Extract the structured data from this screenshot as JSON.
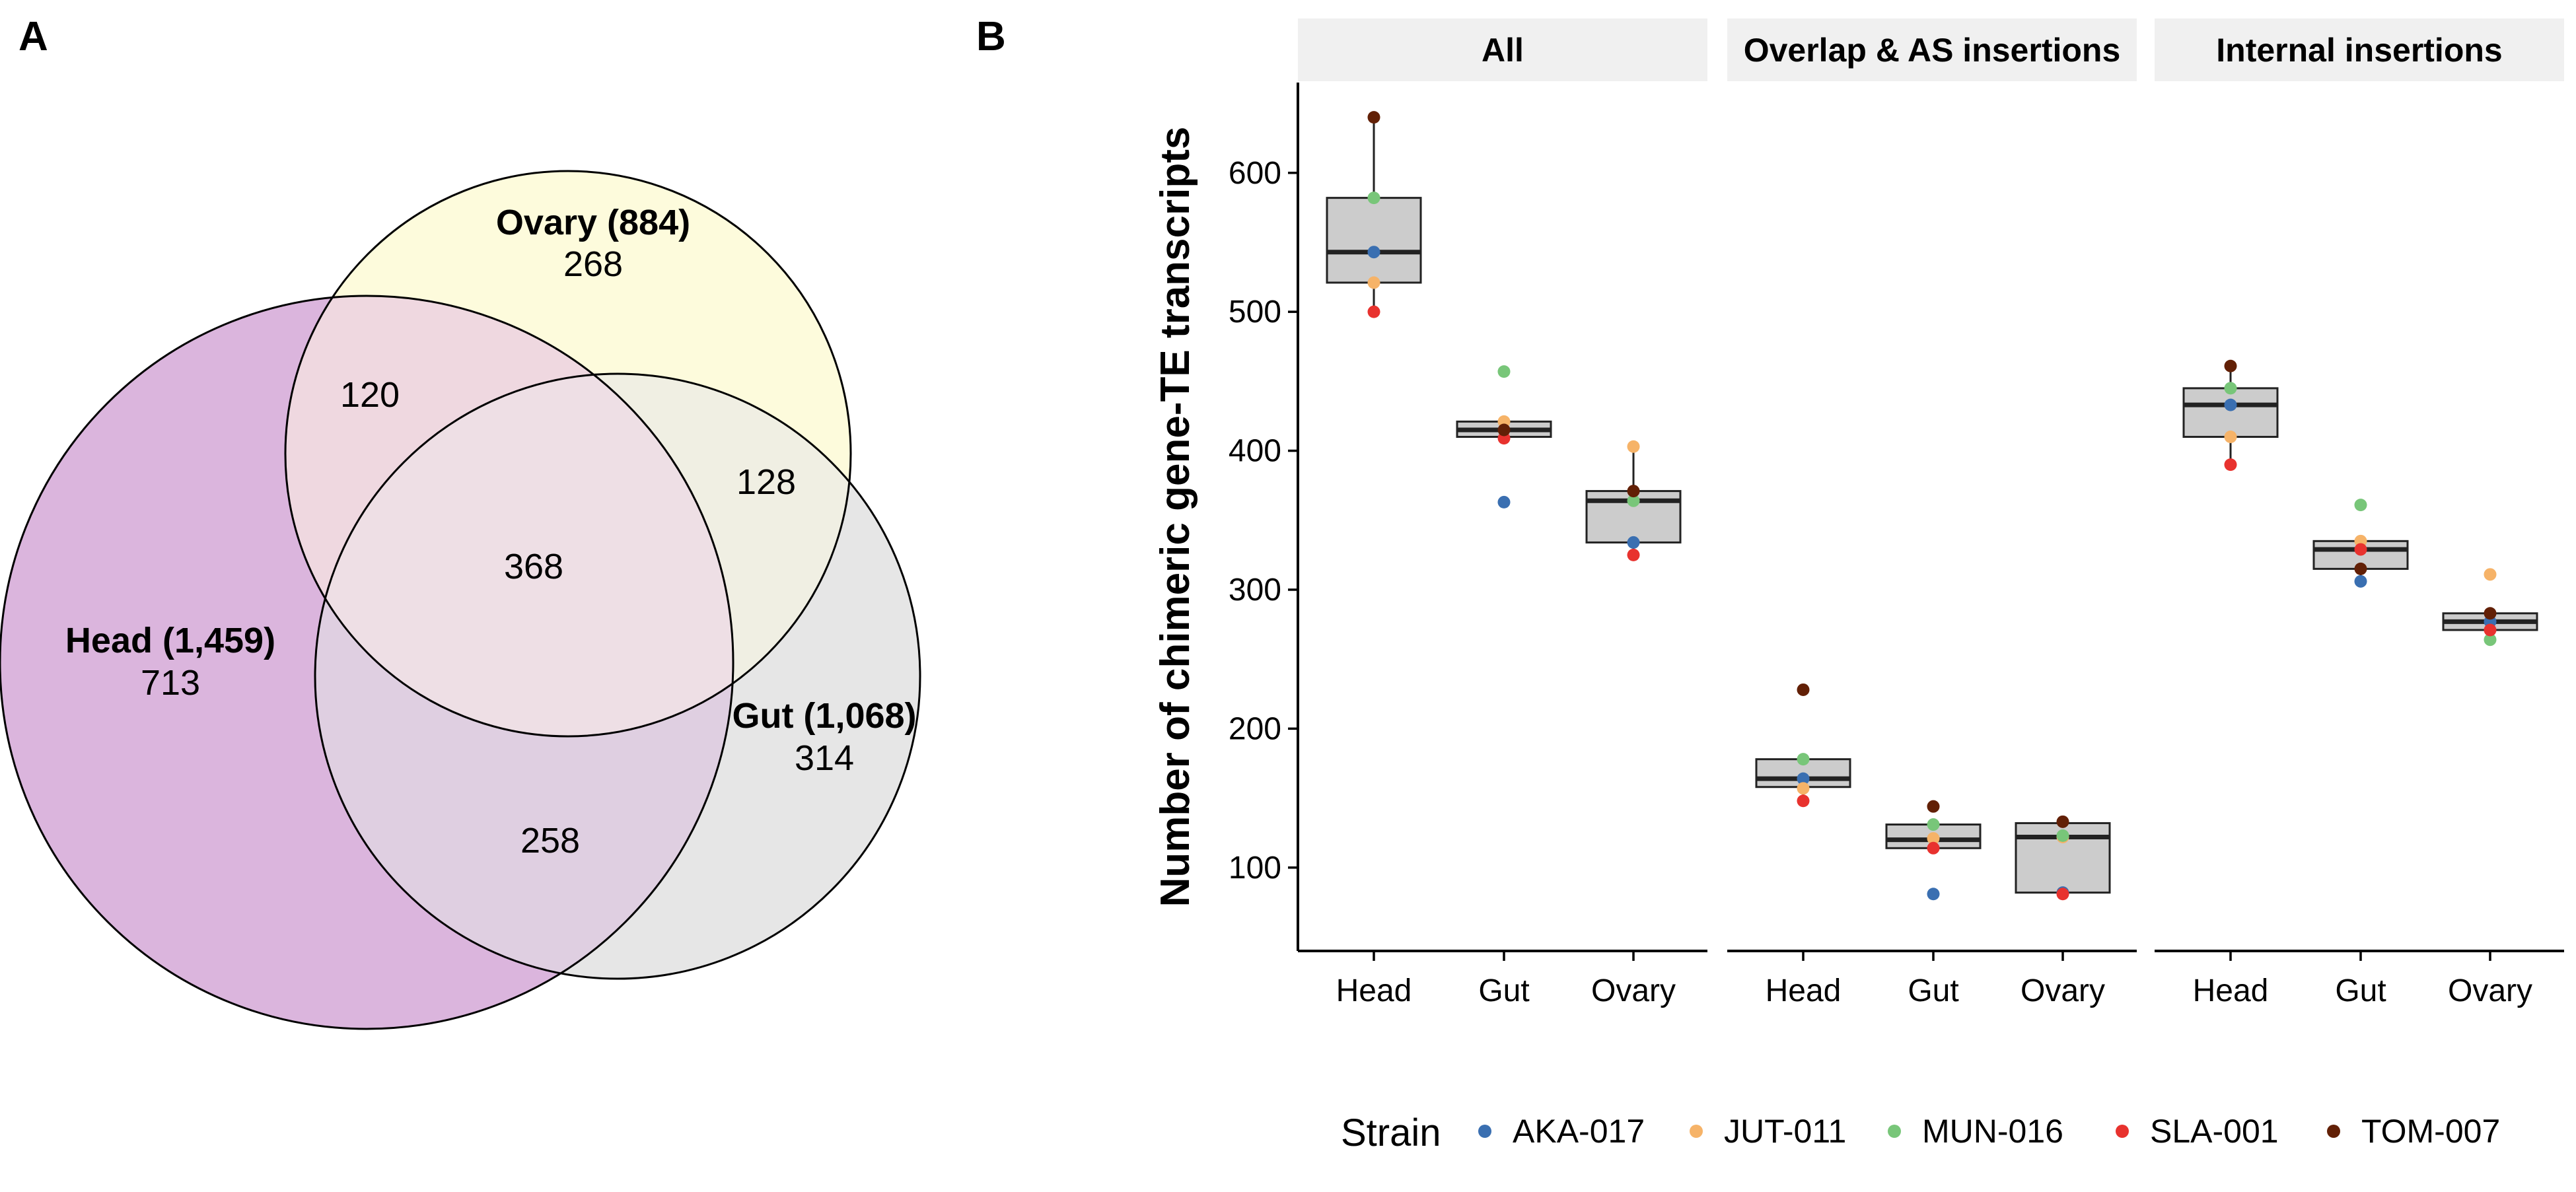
{
  "panels": {
    "a_label": "A",
    "b_label": "B"
  },
  "venn": {
    "colors": {
      "head": "#dbb5dd",
      "ovary": "#fdfbdc",
      "gut": "#e6e6e6",
      "ho": "#efd8e0",
      "og": "#f0efe3",
      "hg": "#dfcfe1",
      "hog": "#eedfe5"
    },
    "sets": [
      {
        "key": "ovary",
        "name": "Ovary (884)",
        "unique": "268"
      },
      {
        "key": "head",
        "name": "Head (1,459)",
        "unique": "713"
      },
      {
        "key": "gut",
        "name": "Gut (1,068)",
        "unique": "314"
      }
    ],
    "overlaps": {
      "head_ovary": "120",
      "ovary_gut": "128",
      "head_gut": "258",
      "all": "368"
    }
  },
  "chart_data": {
    "type": "box",
    "ylabel": "Number of chimeric gene-TE transcripts",
    "ylim": [
      40,
      665
    ],
    "yticks": [
      100,
      200,
      300,
      400,
      500,
      600
    ],
    "categories": [
      "Head",
      "Gut",
      "Ovary"
    ],
    "facets": [
      {
        "title": "All",
        "boxes": [
          {
            "category": "Head",
            "q1": 521,
            "median": 543,
            "q3": 582,
            "low": 500,
            "high": 640
          },
          {
            "category": "Gut",
            "q1": 410,
            "median": 415,
            "q3": 421,
            "low": 409,
            "high": 421
          },
          {
            "category": "Ovary",
            "q1": 334,
            "median": 364,
            "q3": 371,
            "low": 325,
            "high": 403
          }
        ],
        "points": [
          {
            "category": "Head",
            "values": {
              "AKA-017": 543,
              "JUT-011": 521,
              "MUN-016": 582,
              "SLA-001": 500,
              "TOM-007": 640
            }
          },
          {
            "category": "Gut",
            "values": {
              "AKA-017": 363,
              "JUT-011": 421,
              "MUN-016": 457,
              "SLA-001": 409,
              "TOM-007": 415
            }
          },
          {
            "category": "Ovary",
            "values": {
              "AKA-017": 334,
              "JUT-011": 403,
              "MUN-016": 364,
              "SLA-001": 325,
              "TOM-007": 371
            }
          }
        ]
      },
      {
        "title": "Overlap & AS insertions",
        "boxes": [
          {
            "category": "Head",
            "q1": 158,
            "median": 164,
            "q3": 178,
            "low": 148,
            "high": 178
          },
          {
            "category": "Gut",
            "q1": 114,
            "median": 120,
            "q3": 131,
            "low": 114,
            "high": 131
          },
          {
            "category": "Ovary",
            "q1": 82,
            "median": 122,
            "q3": 132,
            "low": 81,
            "high": 133
          }
        ],
        "points": [
          {
            "category": "Head",
            "values": {
              "AKA-017": 164,
              "JUT-011": 157,
              "MUN-016": 178,
              "SLA-001": 148,
              "TOM-007": 228
            }
          },
          {
            "category": "Gut",
            "values": {
              "AKA-017": 81,
              "JUT-011": 121,
              "MUN-016": 131,
              "SLA-001": 114,
              "TOM-007": 144
            }
          },
          {
            "category": "Ovary",
            "values": {
              "AKA-017": 82,
              "JUT-011": 122,
              "MUN-016": 123,
              "SLA-001": 81,
              "TOM-007": 133
            }
          }
        ]
      },
      {
        "title": "Internal insertions",
        "boxes": [
          {
            "category": "Head",
            "q1": 410,
            "median": 433,
            "q3": 445,
            "low": 390,
            "high": 461
          },
          {
            "category": "Gut",
            "q1": 315,
            "median": 329,
            "q3": 335,
            "low": 306,
            "high": 335
          },
          {
            "category": "Ovary",
            "q1": 271,
            "median": 277,
            "q3": 283,
            "low": 264,
            "high": 283
          }
        ],
        "points": [
          {
            "category": "Head",
            "values": {
              "AKA-017": 433,
              "JUT-011": 410,
              "MUN-016": 445,
              "SLA-001": 390,
              "TOM-007": 461
            }
          },
          {
            "category": "Gut",
            "values": {
              "AKA-017": 306,
              "JUT-011": 335,
              "MUN-016": 361,
              "SLA-001": 329,
              "TOM-007": 315
            }
          },
          {
            "category": "Ovary",
            "values": {
              "AKA-017": 277,
              "JUT-011": 311,
              "MUN-016": 264,
              "SLA-001": 271,
              "TOM-007": 283
            }
          }
        ]
      }
    ],
    "legend": {
      "title": "Strain",
      "position": "bottom",
      "items": [
        {
          "name": "AKA-017",
          "color": "#3a6fb1"
        },
        {
          "name": "JUT-011",
          "color": "#f6b368"
        },
        {
          "name": "MUN-016",
          "color": "#78c679"
        },
        {
          "name": "SLA-001",
          "color": "#e8322e"
        },
        {
          "name": "TOM-007",
          "color": "#622006"
        }
      ]
    },
    "box_fill": "#cccccc",
    "strip_fill": "#f0f0f0"
  }
}
